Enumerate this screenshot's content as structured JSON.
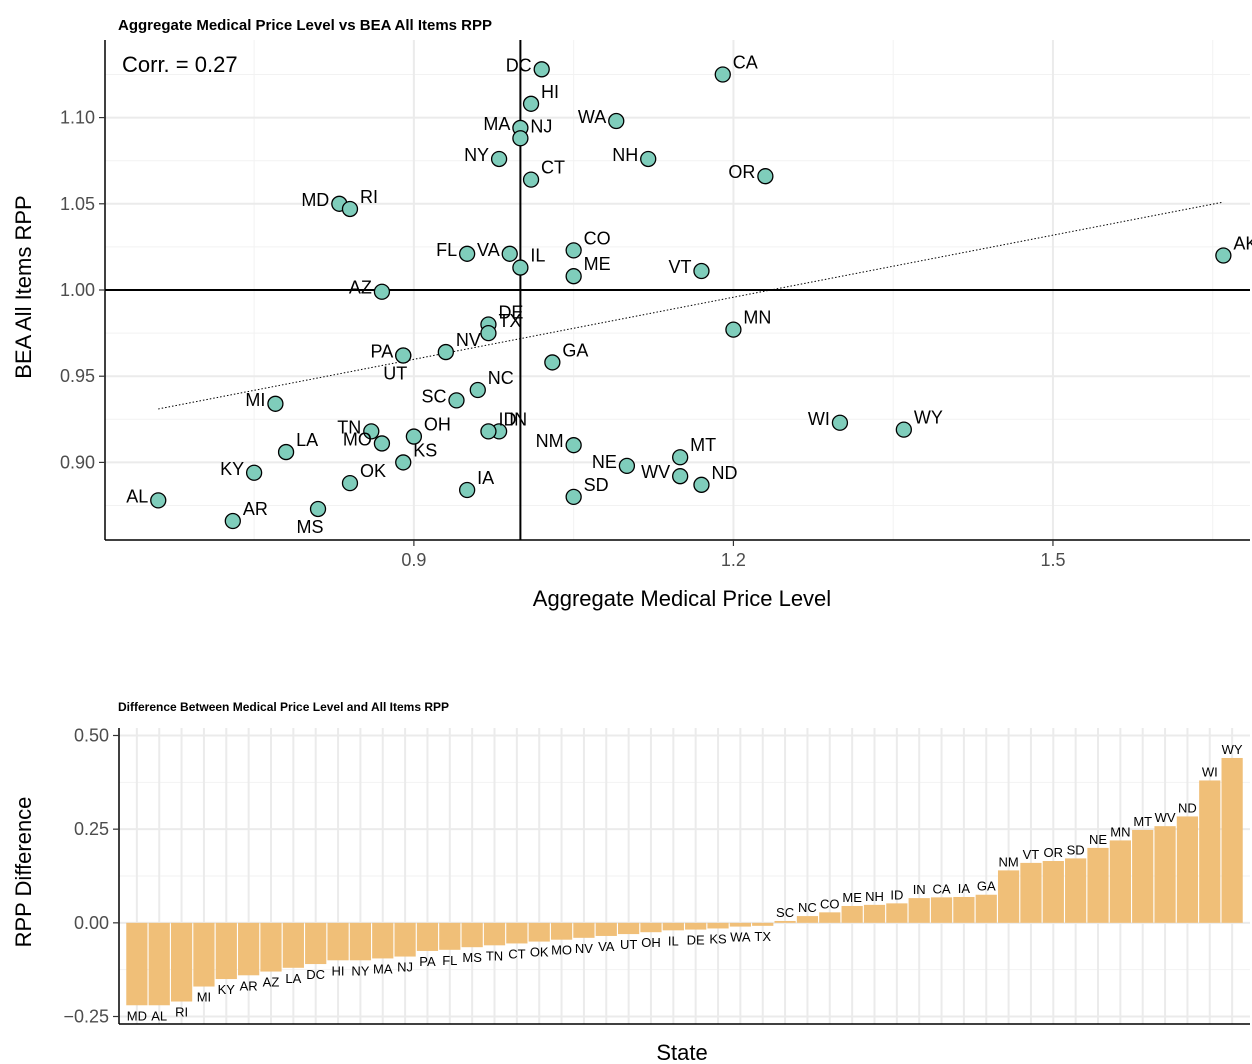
{
  "chart_data": [
    {
      "type": "scatter",
      "title": "Aggregate Medical Price Level vs BEA All Items RPP",
      "xlabel": "Aggregate Medical Price Level",
      "ylabel": "BEA All Items RPP",
      "annotation": "Corr. = 0.27",
      "xlim": [
        0.61,
        1.685
      ],
      "ylim": [
        0.855,
        1.145
      ],
      "xticks": [
        {
          "v": 0.9,
          "label": "0.9"
        },
        {
          "v": 1.2,
          "label": "1.2"
        },
        {
          "v": 1.5,
          "label": "1.5"
        }
      ],
      "yticks": [
        {
          "v": 0.9,
          "label": "0.90"
        },
        {
          "v": 0.95,
          "label": "0.95"
        },
        {
          "v": 1.0,
          "label": "1.00"
        },
        {
          "v": 1.05,
          "label": "1.05"
        },
        {
          "v": 1.1,
          "label": "1.10"
        }
      ],
      "ref_lines": {
        "x": 1.0,
        "y": 1.0
      },
      "trend_line": [
        {
          "x": 0.66,
          "y": 0.931
        },
        {
          "x": 1.66,
          "y": 1.051
        }
      ],
      "marker_color": "#7fcdbb",
      "points": [
        {
          "label": "DC",
          "x": 1.02,
          "y": 1.128,
          "lp": "left"
        },
        {
          "label": "CA",
          "x": 1.19,
          "y": 1.125,
          "lp": "right"
        },
        {
          "label": "HI",
          "x": 1.01,
          "y": 1.108,
          "lp": "right"
        },
        {
          "label": "MA",
          "x": 1.0,
          "y": 1.094,
          "lp": "left"
        },
        {
          "label": "WA",
          "x": 1.09,
          "y": 1.098,
          "lp": "left"
        },
        {
          "label": "NJ",
          "x": 1.0,
          "y": 1.088,
          "lp": "right"
        },
        {
          "label": "NY",
          "x": 0.98,
          "y": 1.076,
          "lp": "left"
        },
        {
          "label": "NH",
          "x": 1.12,
          "y": 1.076,
          "lp": "left"
        },
        {
          "label": "CT",
          "x": 1.01,
          "y": 1.064,
          "lp": "right"
        },
        {
          "label": "OR",
          "x": 1.23,
          "y": 1.066,
          "lp": "left"
        },
        {
          "label": "MD",
          "x": 0.83,
          "y": 1.05,
          "lp": "left"
        },
        {
          "label": "RI",
          "x": 0.84,
          "y": 1.047,
          "lp": "right"
        },
        {
          "label": "VA",
          "x": 0.99,
          "y": 1.021,
          "lp": "left"
        },
        {
          "label": "FL",
          "x": 0.95,
          "y": 1.021,
          "lp": "left"
        },
        {
          "label": "CO",
          "x": 1.05,
          "y": 1.023,
          "lp": "right"
        },
        {
          "label": "IL",
          "x": 1.0,
          "y": 1.013,
          "lp": "right"
        },
        {
          "label": "ME",
          "x": 1.05,
          "y": 1.008,
          "lp": "right"
        },
        {
          "label": "VT",
          "x": 1.17,
          "y": 1.011,
          "lp": "left"
        },
        {
          "label": "AK",
          "x": 1.66,
          "y": 1.02,
          "lp": "right"
        },
        {
          "label": "AZ",
          "x": 0.87,
          "y": 0.999,
          "lp": "left"
        },
        {
          "label": "DE",
          "x": 0.97,
          "y": 0.98,
          "lp": "right"
        },
        {
          "label": "TX",
          "x": 0.97,
          "y": 0.975,
          "lp": "right"
        },
        {
          "label": "MN",
          "x": 1.2,
          "y": 0.977,
          "lp": "right"
        },
        {
          "label": "PA",
          "x": 0.89,
          "y": 0.962,
          "lp": "left"
        },
        {
          "label": "NV",
          "x": 0.93,
          "y": 0.964,
          "lp": "right"
        },
        {
          "label": "UT",
          "x": 0.89,
          "y": 0.962,
          "lp": "below"
        },
        {
          "label": "GA",
          "x": 1.03,
          "y": 0.958,
          "lp": "right"
        },
        {
          "label": "NC",
          "x": 0.96,
          "y": 0.942,
          "lp": "right"
        },
        {
          "label": "SC",
          "x": 0.94,
          "y": 0.936,
          "lp": "left"
        },
        {
          "label": "MI",
          "x": 0.77,
          "y": 0.934,
          "lp": "left"
        },
        {
          "label": "TN",
          "x": 0.86,
          "y": 0.918,
          "lp": "left"
        },
        {
          "label": "IN",
          "x": 0.98,
          "y": 0.918,
          "lp": "right"
        },
        {
          "label": "ID",
          "x": 0.97,
          "y": 0.918,
          "lp": "right"
        },
        {
          "label": "NM",
          "x": 1.05,
          "y": 0.91,
          "lp": "left"
        },
        {
          "label": "WI",
          "x": 1.3,
          "y": 0.923,
          "lp": "left"
        },
        {
          "label": "WY",
          "x": 1.36,
          "y": 0.919,
          "lp": "right"
        },
        {
          "label": "LA",
          "x": 0.78,
          "y": 0.906,
          "lp": "right"
        },
        {
          "label": "MO",
          "x": 0.87,
          "y": 0.911,
          "lp": "left"
        },
        {
          "label": "OH",
          "x": 0.9,
          "y": 0.915,
          "lp": "right"
        },
        {
          "label": "KS",
          "x": 0.89,
          "y": 0.9,
          "lp": "right"
        },
        {
          "label": "NE",
          "x": 1.1,
          "y": 0.898,
          "lp": "left"
        },
        {
          "label": "MT",
          "x": 1.15,
          "y": 0.903,
          "lp": "right"
        },
        {
          "label": "KY",
          "x": 0.75,
          "y": 0.894,
          "lp": "left"
        },
        {
          "label": "OK",
          "x": 0.84,
          "y": 0.888,
          "lp": "right"
        },
        {
          "label": "WV",
          "x": 1.15,
          "y": 0.892,
          "lp": "left"
        },
        {
          "label": "ND",
          "x": 1.17,
          "y": 0.887,
          "lp": "right"
        },
        {
          "label": "IA",
          "x": 0.95,
          "y": 0.884,
          "lp": "right"
        },
        {
          "label": "SD",
          "x": 1.05,
          "y": 0.88,
          "lp": "right"
        },
        {
          "label": "AL",
          "x": 0.66,
          "y": 0.878,
          "lp": "left"
        },
        {
          "label": "AR",
          "x": 0.73,
          "y": 0.866,
          "lp": "right"
        },
        {
          "label": "MS",
          "x": 0.81,
          "y": 0.873,
          "lp": "below"
        }
      ]
    },
    {
      "type": "bar",
      "title": "Difference Between Medical Price Level and All Items RPP",
      "xlabel": "State",
      "ylabel": "RPP Difference",
      "ylim": [
        -0.27,
        0.52
      ],
      "yticks": [
        {
          "v": -0.25,
          "label": "−0.25"
        },
        {
          "v": 0.0,
          "label": "0.00"
        },
        {
          "v": 0.25,
          "label": "0.25"
        },
        {
          "v": 0.5,
          "label": "0.50"
        }
      ],
      "bar_color": "#f0bf78",
      "categories": [
        "MD",
        "AL",
        "RI",
        "MI",
        "KY",
        "AR",
        "AZ",
        "LA",
        "DC",
        "HI",
        "NY",
        "MA",
        "NJ",
        "PA",
        "FL",
        "MS",
        "TN",
        "CT",
        "OK",
        "MO",
        "NV",
        "VA",
        "UT",
        "OH",
        "IL",
        "DE",
        "KS",
        "WA",
        "TX",
        "SC",
        "NC",
        "CO",
        "ME",
        "NH",
        "ID",
        "IN",
        "CA",
        "IA",
        "GA",
        "NM",
        "VT",
        "OR",
        "SD",
        "NE",
        "MN",
        "MT",
        "WV",
        "ND",
        "WI",
        "WY"
      ],
      "values": [
        -0.22,
        -0.22,
        -0.21,
        -0.17,
        -0.15,
        -0.14,
        -0.13,
        -0.12,
        -0.11,
        -0.1,
        -0.1,
        -0.095,
        -0.09,
        -0.075,
        -0.072,
        -0.065,
        -0.06,
        -0.055,
        -0.05,
        -0.045,
        -0.04,
        -0.035,
        -0.03,
        -0.025,
        -0.02,
        -0.018,
        -0.015,
        -0.01,
        -0.008,
        0.005,
        0.018,
        0.028,
        0.045,
        0.048,
        0.052,
        0.066,
        0.068,
        0.069,
        0.075,
        0.14,
        0.16,
        0.165,
        0.172,
        0.2,
        0.22,
        0.248,
        0.258,
        0.284,
        0.38,
        0.44
      ]
    }
  ]
}
